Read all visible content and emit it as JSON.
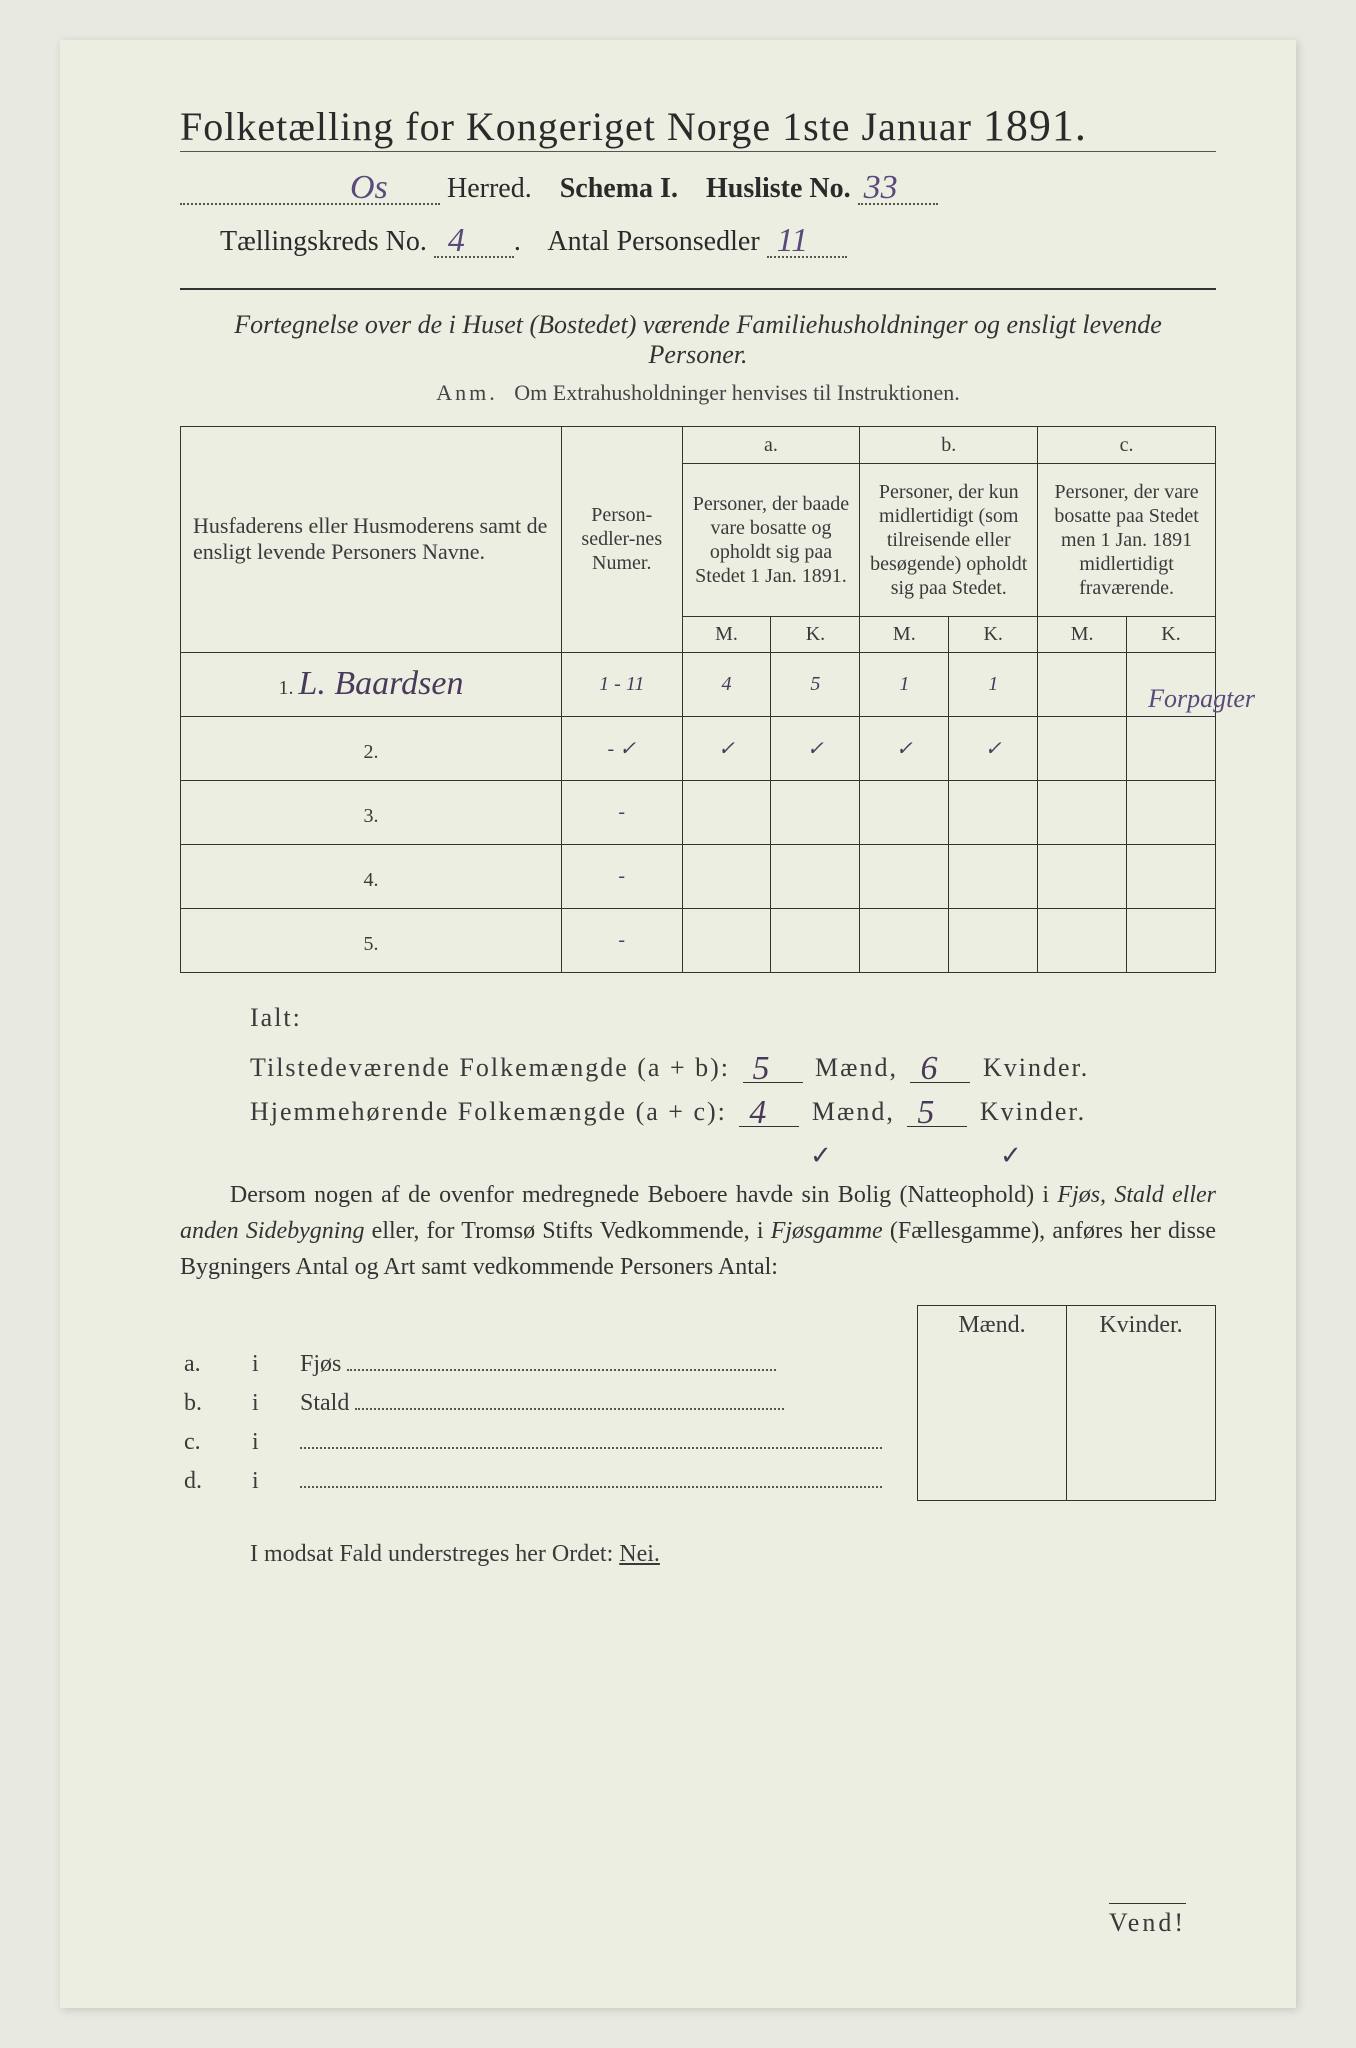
{
  "header": {
    "title_prefix": "Folketælling for Kongeriget Norge 1ste Januar",
    "year": "1891.",
    "herred_label": "Herred.",
    "herred_value": "Os",
    "schema_label": "Schema I.",
    "husliste_label": "Husliste No.",
    "husliste_value": "33",
    "kreds_label": "Tællingskreds No.",
    "kreds_value": "4",
    "antal_label": "Antal Personsedler",
    "antal_value": "11"
  },
  "subtitle": "Fortegnelse over de i Huset (Bostedet) værende Familiehusholdninger og ensligt levende Personer.",
  "anm_label": "Anm.",
  "anm_text": "Om Extrahusholdninger henvises til Instruktionen.",
  "table": {
    "col_name": "Husfaderens eller Husmoderens samt de ensligt levende Personers Navne.",
    "col_num": "Person-sedler-nes Numer.",
    "col_a_label": "a.",
    "col_a": "Personer, der baade vare bosatte og opholdt sig paa Stedet 1 Jan. 1891.",
    "col_b_label": "b.",
    "col_b": "Personer, der kun midlertidigt (som tilreisende eller besøgende) opholdt sig paa Stedet.",
    "col_c_label": "c.",
    "col_c": "Personer, der vare bosatte paa Stedet men 1 Jan. 1891 midlertidigt fraværende.",
    "m": "M.",
    "k": "K.",
    "rows": [
      {
        "n": "1.",
        "name": "L. Baardsen",
        "num": "1 - 11",
        "am": "4",
        "ak": "5",
        "bm": "1",
        "bk": "1",
        "cm": "",
        "ck": "",
        "note": "Forpagter"
      },
      {
        "n": "2.",
        "name": "",
        "num": "- ✓",
        "am": "✓",
        "ak": "✓",
        "bm": "✓",
        "bk": "✓",
        "cm": "",
        "ck": "",
        "note": ""
      },
      {
        "n": "3.",
        "name": "",
        "num": "-",
        "am": "",
        "ak": "",
        "bm": "",
        "bk": "",
        "cm": "",
        "ck": "",
        "note": ""
      },
      {
        "n": "4.",
        "name": "",
        "num": "-",
        "am": "",
        "ak": "",
        "bm": "",
        "bk": "",
        "cm": "",
        "ck": "",
        "note": ""
      },
      {
        "n": "5.",
        "name": "",
        "num": "-",
        "am": "",
        "ak": "",
        "bm": "",
        "bk": "",
        "cm": "",
        "ck": "",
        "note": ""
      }
    ]
  },
  "totals": {
    "ialt": "Ialt:",
    "line_ab_label": "Tilstedeværende Folkemængde (a + b):",
    "line_ac_label": "Hjemmehørende Folkemængde (a + c):",
    "maend": "Mænd,",
    "kvinder": "Kvinder.",
    "ab_m": "5",
    "ab_k": "6",
    "ac_m": "4",
    "ac_k": "5",
    "check": "✓"
  },
  "para": "Dersom nogen af de ovenfor medregnede Beboere havde sin Bolig (Natteophold) i Fjøs, Stald eller anden Sidebygning eller, for Tromsø Stifts Vedkommende, i Fjøsgamme (Fællesgamme), anføres her disse Bygningers Antal og Art samt vedkommende Personers Antal:",
  "bldg": {
    "maend": "Mænd.",
    "kvinder": "Kvinder.",
    "rows": [
      {
        "l": "a.",
        "i": "i",
        "t": "Fjøs"
      },
      {
        "l": "b.",
        "i": "i",
        "t": "Stald"
      },
      {
        "l": "c.",
        "i": "i",
        "t": ""
      },
      {
        "l": "d.",
        "i": "i",
        "t": ""
      }
    ]
  },
  "footer": {
    "text_pre": "I modsat Fald understreges her Ordet: ",
    "nei": "Nei.",
    "vend": "Vend!"
  },
  "colors": {
    "paper": "#eceee2",
    "ink": "#2a2a2a",
    "handwriting": "#4a3a5a"
  }
}
